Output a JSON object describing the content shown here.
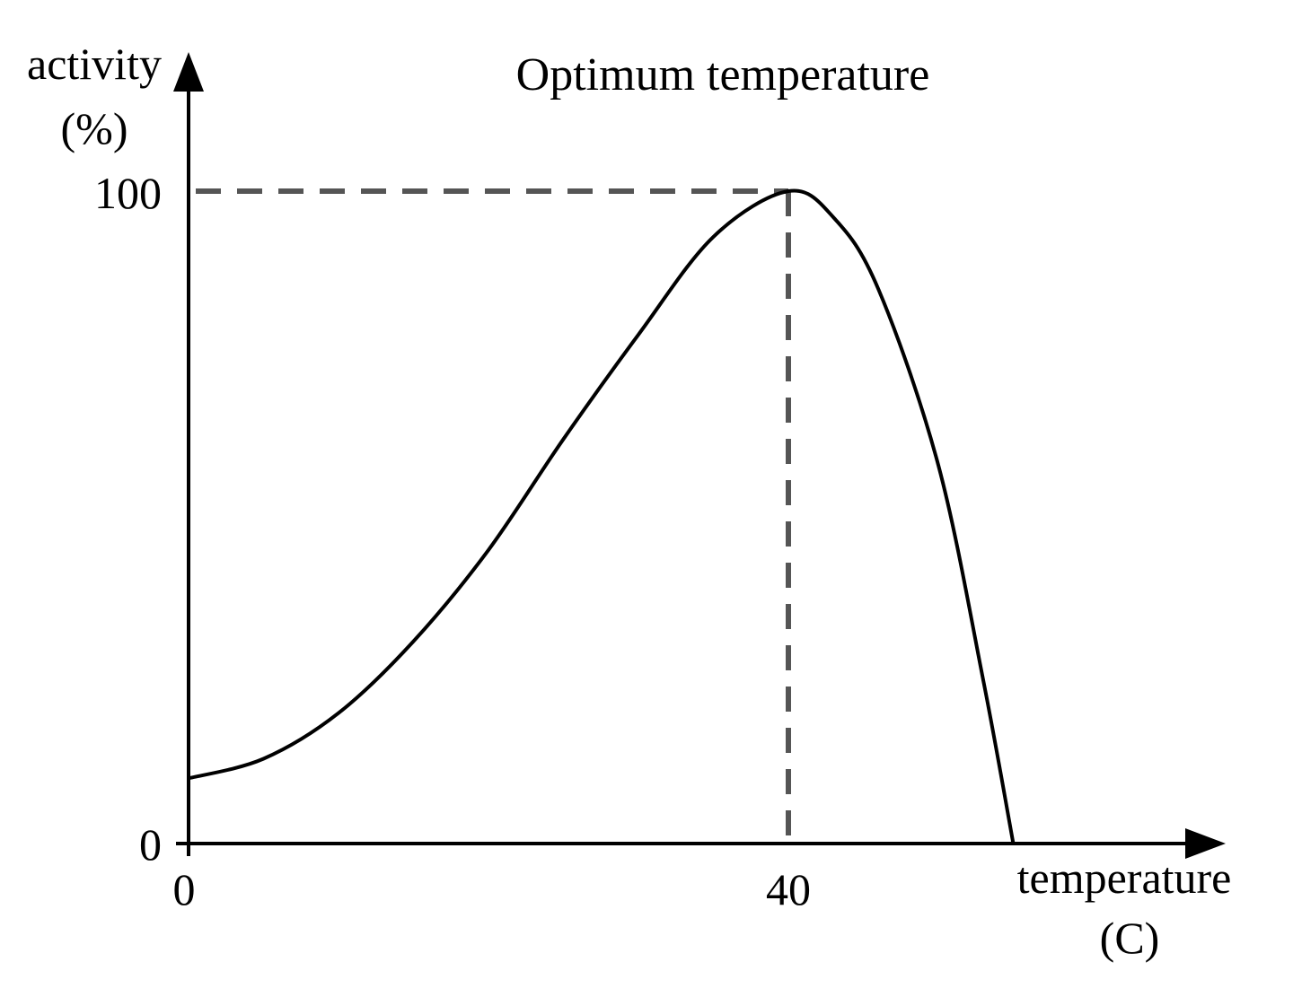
{
  "chart_data": {
    "type": "line",
    "title": "Optimum temperature",
    "xlabel": "temperature",
    "xlabel_unit": "(C)",
    "ylabel": "activity",
    "ylabel_unit": "(%)",
    "x_ticks": [
      "0",
      "40"
    ],
    "y_ticks": [
      "0",
      "100"
    ],
    "xlim": [
      0,
      70
    ],
    "ylim": [
      0,
      100
    ],
    "grid": false,
    "reference_lines": {
      "optimum_x": 40,
      "optimum_y": 100,
      "style": "dashed"
    },
    "series": [
      {
        "x": [
          0,
          5,
          10,
          15,
          20,
          25,
          30,
          35,
          40,
          43,
          46,
          50,
          53,
          55
        ],
        "y": [
          10,
          13,
          20,
          31,
          45,
          62,
          78,
          93,
          100,
          96,
          85,
          58,
          25,
          0
        ],
        "color": "#000000"
      }
    ]
  }
}
